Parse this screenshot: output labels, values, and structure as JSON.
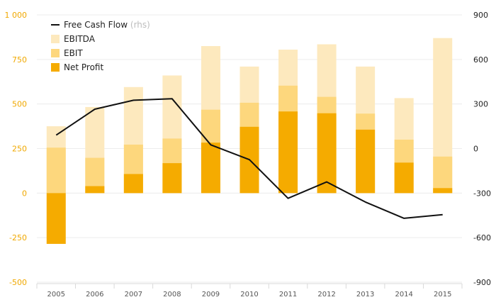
{
  "chart_data": {
    "type": "bar",
    "categories": [
      "2005",
      "2006",
      "2007",
      "2008",
      "2009",
      "2010",
      "2011",
      "2012",
      "2013",
      "2014",
      "2015"
    ],
    "series": [
      {
        "name": "EBITDA",
        "type": "bar",
        "axis": "left",
        "color": "#fde9be",
        "values": [
          375,
          483,
          595,
          660,
          825,
          710,
          805,
          835,
          710,
          533,
          870
        ]
      },
      {
        "name": "EBIT",
        "type": "bar",
        "axis": "left",
        "color": "#fdd77d",
        "values": [
          255,
          198,
          272,
          306,
          468,
          507,
          603,
          540,
          446,
          300,
          205
        ]
      },
      {
        "name": "Net Profit",
        "type": "bar",
        "axis": "left",
        "color": "#f5ab00",
        "values": [
          -285,
          39,
          107,
          168,
          283,
          372,
          458,
          448,
          356,
          171,
          28
        ]
      },
      {
        "name": "Free Cash Flow",
        "legend_note": "(rhs)",
        "type": "line",
        "axis": "right",
        "color": "#111111",
        "values": [
          90,
          265,
          325,
          335,
          25,
          -75,
          -335,
          -225,
          -360,
          -470,
          -445
        ]
      }
    ],
    "ylim_left": [
      -500,
      1000
    ],
    "yticks_left": [
      "-500",
      "-250",
      "0",
      "250",
      "500",
      "750",
      "1 000"
    ],
    "ylim_right": [
      -900,
      900
    ],
    "yticks_right": [
      "-900",
      "-600",
      "-300",
      "0",
      "300",
      "600",
      "900"
    ],
    "legend": {
      "position": "top-left",
      "items": [
        {
          "label": "Free Cash Flow",
          "note": "(rhs)",
          "kind": "line",
          "color": "#111111"
        },
        {
          "label": "EBITDA",
          "kind": "box",
          "color": "#fde9be"
        },
        {
          "label": "EBIT",
          "kind": "box",
          "color": "#fdd77d"
        },
        {
          "label": "Net Profit",
          "kind": "box",
          "color": "#f5ab00"
        }
      ]
    },
    "grid": true
  }
}
